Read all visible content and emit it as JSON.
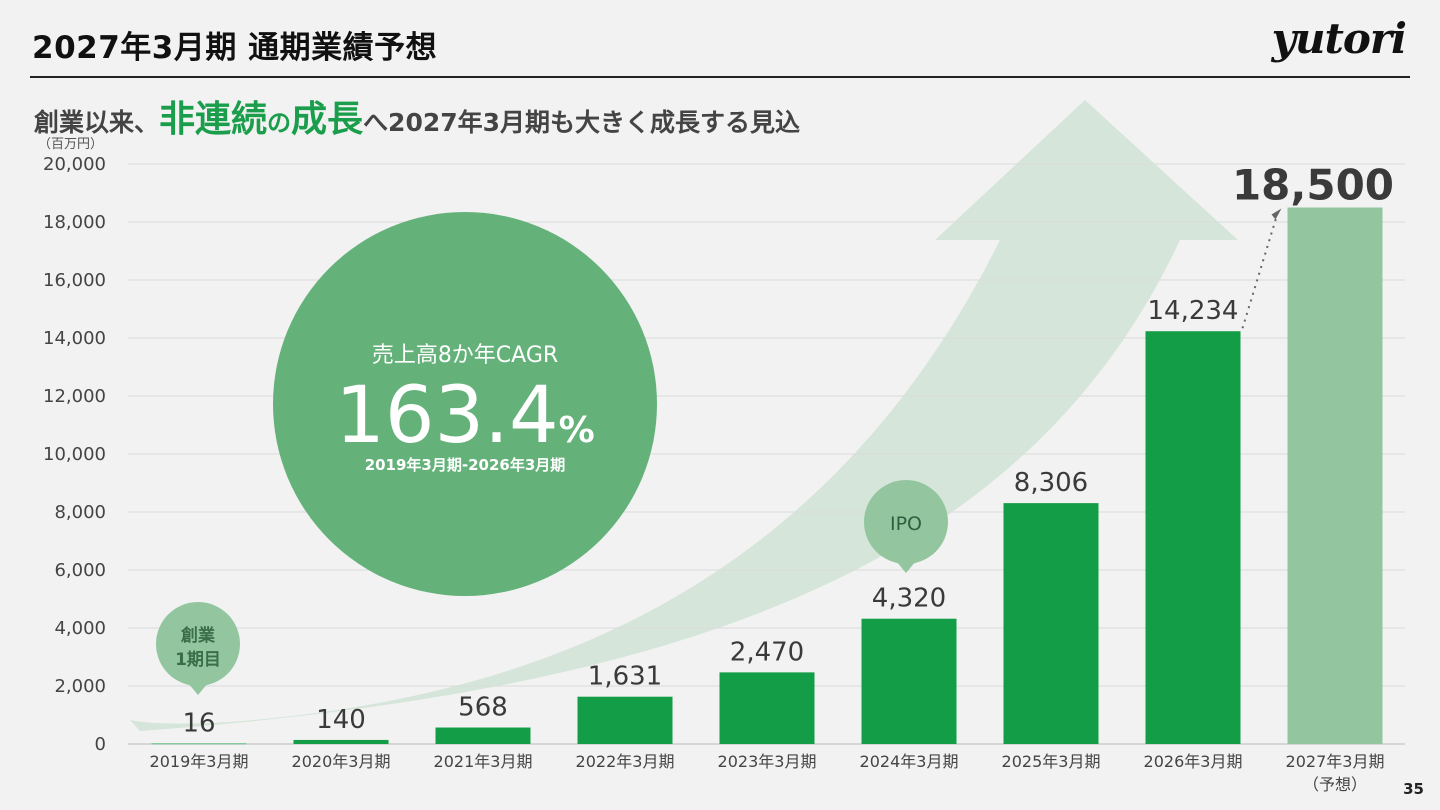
{
  "header": {
    "title": "2027年3月期 通期業績予想",
    "logo_text": "yutori"
  },
  "subtitle": {
    "part1": "創業以来、",
    "highlight1": "非連続",
    "particle": "の",
    "highlight2": "成長",
    "part2": "へ2027年3月期も大きく成長する見込"
  },
  "cagr_badge": {
    "label": "売上高8か年CAGR",
    "value": "163.4",
    "unit": "%",
    "period": "2019年3月期-2026年3月期"
  },
  "callouts": {
    "founding": [
      "創業",
      "1期目"
    ],
    "ipo": "IPO"
  },
  "page_number": "35",
  "colors": {
    "bar": "#149d47",
    "forecast_bar": "#93c69f",
    "circle": "#64b27a",
    "arrow": "#d5e5d9",
    "callout": "#93c69f"
  },
  "chart_data": {
    "type": "bar",
    "unit_label": "（百万円）",
    "categories": [
      "2019年3月期",
      "2020年3月期",
      "2021年3月期",
      "2022年3月期",
      "2023年3月期",
      "2024年3月期",
      "2025年3月期",
      "2026年3月期",
      "2027年3月期"
    ],
    "category_sublabels": [
      "",
      "",
      "",
      "",
      "",
      "",
      "",
      "",
      "（予想）"
    ],
    "values": [
      16,
      140,
      568,
      1631,
      2470,
      4320,
      8306,
      14234,
      18500
    ],
    "value_labels": [
      "16",
      "140",
      "568",
      "1,631",
      "2,470",
      "4,320",
      "8,306",
      "14,234",
      "18,500"
    ],
    "forecast": [
      false,
      false,
      false,
      false,
      false,
      false,
      false,
      false,
      true
    ],
    "ylim": [
      0,
      20000
    ],
    "yticks": [
      0,
      2000,
      4000,
      6000,
      8000,
      10000,
      12000,
      14000,
      16000,
      18000,
      20000
    ],
    "ytick_labels": [
      "0",
      "2,000",
      "4,000",
      "6,000",
      "8,000",
      "10,000",
      "12,000",
      "14,000",
      "16,000",
      "18,000",
      "20,000"
    ],
    "grid": true
  }
}
